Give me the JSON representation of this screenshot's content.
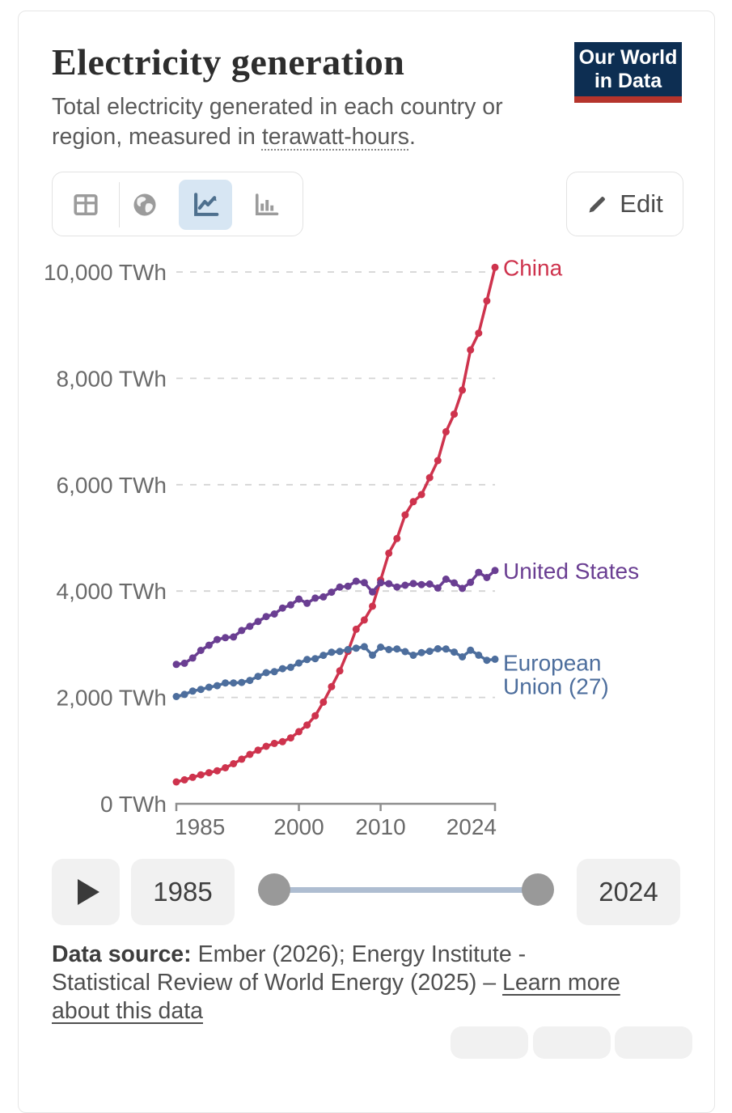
{
  "header": {
    "title": "Electricity generation",
    "subtitle_line1": "Total electricity generated in each country or",
    "subtitle_line2_prefix": "region, measured in ",
    "subtitle_term": "terawatt-hours",
    "subtitle_suffix": ".",
    "logo": {
      "line1": "Our World",
      "line2": "in Data",
      "bg_color": "#0d2e52",
      "accent_color": "#b5342c"
    }
  },
  "toolbar": {
    "tabs": [
      {
        "icon": "table-icon",
        "selected": false
      },
      {
        "icon": "globe-icon",
        "selected": false
      },
      {
        "icon": "line-chart-icon",
        "selected": true
      },
      {
        "icon": "bar-chart-icon",
        "selected": false
      }
    ],
    "edit_label": "Edit"
  },
  "chart_data": {
    "type": "line",
    "title": "Electricity generation",
    "unit": "TWh",
    "xlim": [
      1985,
      2024
    ],
    "ylim": [
      0,
      10000
    ],
    "grid": "dashed-horizontal",
    "legend": "end-of-line-labels",
    "x": [
      1985,
      1986,
      1987,
      1988,
      1989,
      1990,
      1991,
      1992,
      1993,
      1994,
      1995,
      1996,
      1997,
      1998,
      1999,
      2000,
      2001,
      2002,
      2003,
      2004,
      2005,
      2006,
      2007,
      2008,
      2009,
      2010,
      2011,
      2012,
      2013,
      2014,
      2015,
      2016,
      2017,
      2018,
      2019,
      2020,
      2021,
      2022,
      2023,
      2024
    ],
    "series": [
      {
        "name": "China",
        "color": "#ce334d",
        "values": [
          411,
          450,
          497,
          545,
          585,
          621,
          678,
          754,
          839,
          928,
          1008,
          1081,
          1136,
          1167,
          1239,
          1356,
          1481,
          1654,
          1911,
          2203,
          2500,
          2866,
          3282,
          3457,
          3715,
          4207,
          4713,
          4988,
          5432,
          5680,
          5815,
          6133,
          6453,
          6995,
          7327,
          7779,
          8534,
          8849,
          9456,
          10087
        ]
      },
      {
        "name": "United States",
        "color": "#6a3e92",
        "values": [
          2621,
          2643,
          2742,
          2885,
          2982,
          3088,
          3124,
          3137,
          3258,
          3336,
          3428,
          3521,
          3570,
          3681,
          3740,
          3850,
          3770,
          3867,
          3891,
          3979,
          4074,
          4092,
          4185,
          4158,
          3983,
          4157,
          4138,
          4076,
          4110,
          4141,
          4122,
          4133,
          4058,
          4223,
          4154,
          4050,
          4165,
          4352,
          4254,
          4386
        ]
      },
      {
        "name": "European Union (27)",
        "color": "#4d6e9d",
        "values": [
          2016,
          2056,
          2118,
          2150,
          2192,
          2221,
          2273,
          2272,
          2281,
          2319,
          2395,
          2466,
          2484,
          2540,
          2566,
          2647,
          2713,
          2729,
          2791,
          2849,
          2864,
          2900,
          2925,
          2955,
          2795,
          2945,
          2900,
          2911,
          2861,
          2793,
          2843,
          2867,
          2915,
          2910,
          2853,
          2763,
          2888,
          2794,
          2698,
          2718
        ]
      }
    ],
    "yticks": [
      {
        "value": 0,
        "label": "0 TWh"
      },
      {
        "value": 2000,
        "label": "2,000 TWh"
      },
      {
        "value": 4000,
        "label": "4,000 TWh"
      },
      {
        "value": 6000,
        "label": "6,000 TWh"
      },
      {
        "value": 8000,
        "label": "8,000 TWh"
      },
      {
        "value": 10000,
        "label": "10,000 TWh"
      }
    ],
    "xticks": [
      {
        "value": 1985,
        "label": "1985"
      },
      {
        "value": 2000,
        "label": "2000"
      },
      {
        "value": 2010,
        "label": "2010"
      },
      {
        "value": 2024,
        "label": "2024"
      }
    ]
  },
  "timeline": {
    "start_year": "1985",
    "end_year": "2024"
  },
  "footer": {
    "label": "Data source:",
    "line1_rest": " Ember (2026); Energy Institute -",
    "line2_plain": "Statistical Review of World Energy (2025) – ",
    "line2_link": "Learn more",
    "line3_link": "about this data"
  }
}
